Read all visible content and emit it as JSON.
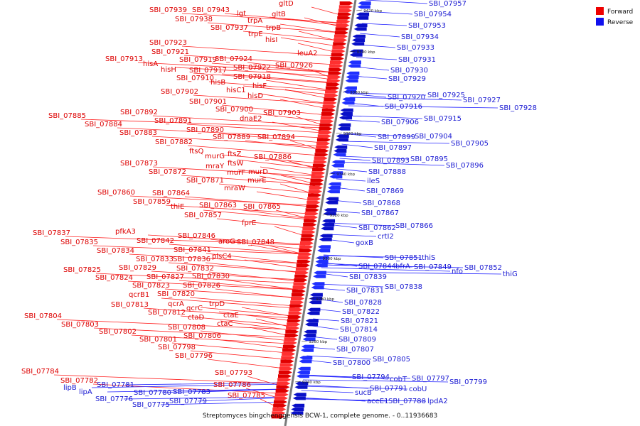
{
  "caption": "Streptomyces bingchenggensis BCW-1, complete genome. - 0..11936683",
  "legend": {
    "forward_label": "Forward",
    "reverse_label": "Reverse",
    "forward_color": "#ee0000",
    "reverse_color": "#1010ee"
  },
  "colors": {
    "forward_line": "#ff2020",
    "reverse_line": "#2020ff",
    "backbone": "#7a7a7a"
  },
  "ticks": [
    "9420 kbp",
    "9400 kbp",
    "9380 kbp",
    "9360 kbp",
    "9340 kbp",
    "9320 kbp",
    "9300 kbp",
    "9280 kbp",
    "9260 kbp",
    "9240 kbp"
  ],
  "forward_labels": [
    "gltD",
    "SBI_07939",
    "SBI_07943",
    "lgt",
    "gltB",
    "SBI_07938",
    "trpA",
    "SBI_07937",
    "trpB",
    "trpE",
    "hisI",
    "SBI_07923",
    "leuA2",
    "SBI_07921",
    "SBI_07913",
    "hisA",
    "SBI_07919",
    "SBI_07924",
    "SBI_07922",
    "SBI_07926",
    "hisH",
    "SBI_07917",
    "SBI_07910",
    "SBI_07918",
    "hisB",
    "hisF",
    "hisC1",
    "SBI_07902",
    "hisD",
    "SBI_07901",
    "SBI_07900",
    "SBI_07903",
    "SBI_07892",
    "SBI_07885",
    "dnaE2",
    "SBI_07884",
    "SBI_07891",
    "SBI_07890",
    "SBI_07883",
    "SBI_07889",
    "SBI_07894",
    "SBI_07882",
    "ftsQ",
    "murG",
    "ftsZ",
    "SBI_07886",
    "SBI_07873",
    "mraY",
    "ftsW",
    "SBI_07872",
    "murF",
    "murD",
    "SBI_07871",
    "murE",
    "mraW",
    "SBI_07860",
    "SBI_07864",
    "SBI_07859",
    "thiE",
    "SBI_07863",
    "SBI_07865",
    "SBI_07857",
    "fprE",
    "SBI_07837",
    "pfkA3",
    "SBI_07846",
    "SBI_07835",
    "SBI_07842",
    "aroG",
    "SBI_07848",
    "SBI_07834",
    "SBI_07841",
    "plsC4",
    "SBI_07833",
    "SBI_07836",
    "SBI_07829",
    "SBI_07832",
    "SBI_07825",
    "SBI_07824",
    "SBI_07827",
    "SBI_07830",
    "SBI_07823",
    "SBI_07826",
    "qcrB1",
    "SBI_07820",
    "trpD",
    "SBI_07813",
    "qcrA",
    "qcrC",
    "SBI_07812",
    "ctaE",
    "ctaD",
    "SBI_07804",
    "ctaC",
    "SBI_07803",
    "SBI_07808",
    "SBI_07802",
    "SBI_07806",
    "SBI_07801",
    "SBI_07798",
    "SBI_07796",
    "SBI_07793",
    "SBI_07784",
    "SBI_07782",
    "SBI_07786",
    "SBI_07785"
  ],
  "reverse_labels": [
    "SBI_07957",
    "SBI_07954",
    "SBI_07953",
    "SBI_07934",
    "SBI_07933",
    "SBI_07931",
    "SBI_07930",
    "SBI_07929",
    "SBI_07925",
    "SBI_07920",
    "SBI_07927",
    "SBI_07928",
    "SBI_07916",
    "SBI_07915",
    "SBI_07906",
    "SBI_07899",
    "SBI_07904",
    "SBI_07905",
    "SBI_07897",
    "SBI_07895",
    "SBI_07893",
    "SBI_07896",
    "SBI_07888",
    "ileS",
    "SBI_07869",
    "SBI_07868",
    "SBI_07867",
    "SBI_07862",
    "SBI_07866",
    "crtI2",
    "goxB",
    "SBI_07851",
    "thiS",
    "SBI_07844",
    "bfrA",
    "SBI_07849",
    "nfo",
    "SBI_07852",
    "thiG",
    "SBI_07839",
    "SBI_07838",
    "SBI_07831",
    "SBI_07828",
    "SBI_07822",
    "SBI_07821",
    "SBI_07814",
    "SBI_07809",
    "SBI_07807",
    "SBI_07805",
    "SBI_07800",
    "SBI_07794",
    "cobT",
    "SBI_07797",
    "SBI_07799",
    "SBI_07791",
    "cobU",
    "sucB",
    "aceE1",
    "SBI_07788",
    "lpdA2",
    "lipB",
    "lipA",
    "SBI_07781",
    "SBI_07780",
    "SBI_07783",
    "SBI_07776",
    "SBI_07779",
    "SBI_07775"
  ]
}
